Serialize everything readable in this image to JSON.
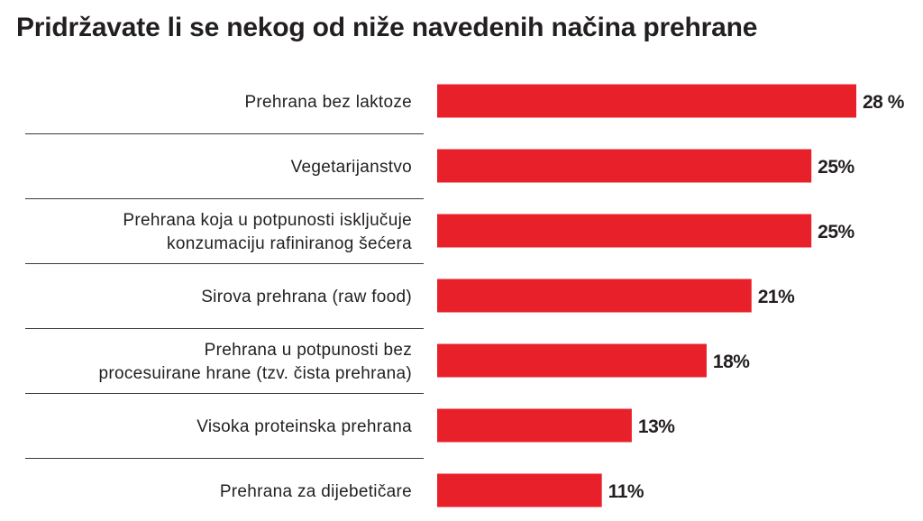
{
  "chart_data": {
    "type": "bar",
    "orientation": "horizontal",
    "title": "Pridržavate li se nekog od niže navedenih načina prehrane",
    "categories": [
      [
        "Prehrana bez laktoze"
      ],
      [
        "Vegetarijanstvo"
      ],
      [
        "Prehrana koja u potpunosti isključuje",
        "konzumaciju rafiniranog šećera"
      ],
      [
        "Sirova prehrana (raw food)"
      ],
      [
        "Prehrana u potpunosti bez",
        "procesuirane hrane (tzv. čista prehrana)"
      ],
      [
        "Visoka proteinska prehrana"
      ],
      [
        "Prehrana za  dijebetičare"
      ]
    ],
    "values": [
      28,
      25,
      25,
      21,
      18,
      13,
      11
    ],
    "value_labels": [
      "28 %",
      "25%",
      "25%",
      "21%",
      "18%",
      "13%",
      "11%"
    ],
    "bar_color": "#e8202a",
    "grid": false,
    "legend": "none"
  }
}
